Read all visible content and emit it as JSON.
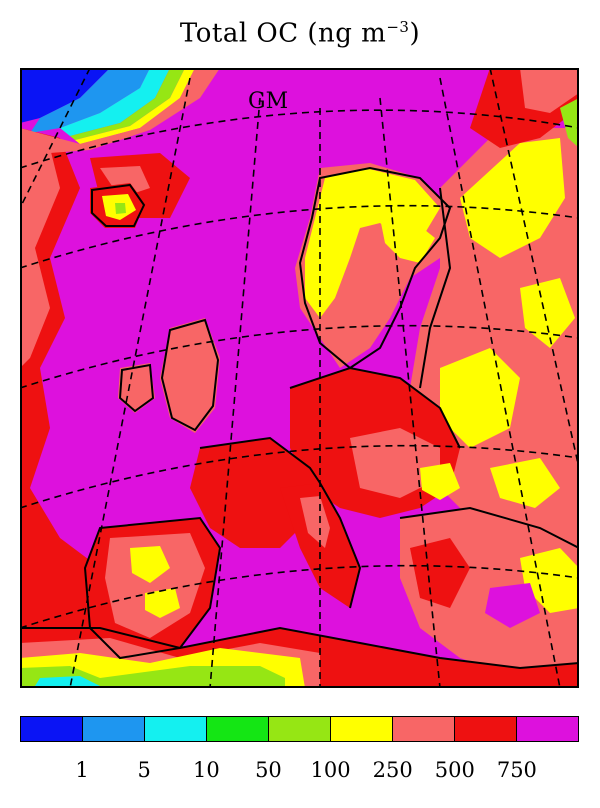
{
  "figure": {
    "title_prefix": "Total OC (ng m",
    "title_exponent": "−3",
    "title_suffix": ")",
    "map_label": "GM"
  },
  "legend": {
    "colors": [
      "#0a14f5",
      "#1e96f0",
      "#14f0f0",
      "#14e614",
      "#96e614",
      "#ffff00",
      "#f86666",
      "#ee1111",
      "#dd11dd"
    ],
    "tick_labels": [
      "1",
      "5",
      "10",
      "50",
      "100",
      "250",
      "500",
      "750"
    ]
  },
  "map_colors": {
    "ocean_background": "#dd11dd",
    "level_500": "#ee1111",
    "level_250": "#f86666",
    "level_100": "#ffff00",
    "level_50": "#96e614",
    "level_10": "#14e614",
    "level_5": "#14f0f0",
    "level_1": "#1e96f0",
    "level_0": "#0a14f5"
  }
}
